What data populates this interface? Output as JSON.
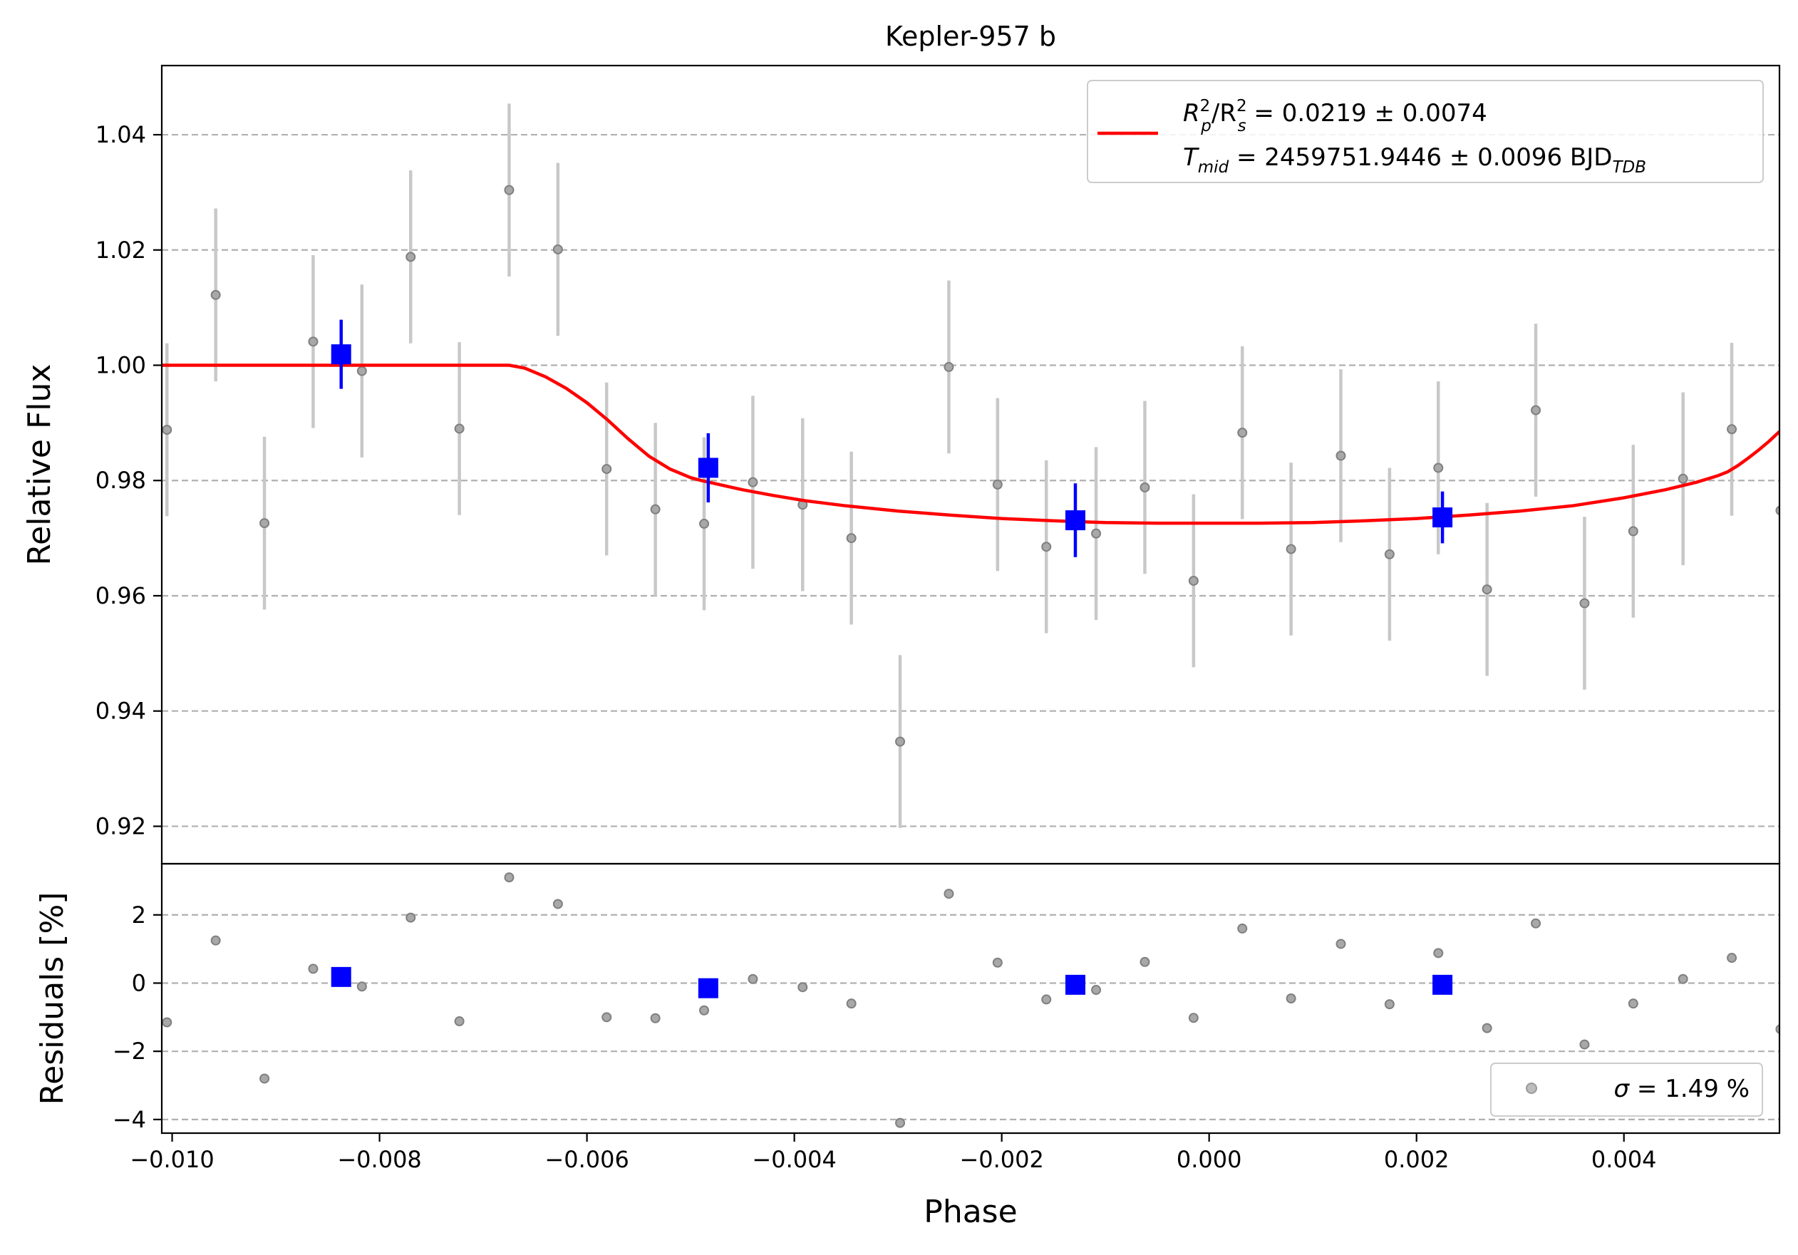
{
  "chart_data": {
    "type": "scatter",
    "title": "Kepler-957 b",
    "xlabel": "Phase",
    "xlim": [
      -0.0101,
      0.0055
    ],
    "x_ticks": [
      -0.01,
      -0.008,
      -0.006,
      -0.004,
      -0.002,
      0.0,
      0.002,
      0.004
    ],
    "x_tick_labels": [
      "−0.010",
      "−0.008",
      "−0.006",
      "−0.004",
      "−0.002",
      "0.000",
      "0.002",
      "0.004"
    ],
    "top_panel": {
      "ylabel": "Relative Flux",
      "ylim": [
        0.9135,
        1.052
      ],
      "y_ticks": [
        0.92,
        0.94,
        0.96,
        0.98,
        1.0,
        1.02,
        1.04
      ],
      "y_tick_labels": [
        "0.92",
        "0.94",
        "0.96",
        "0.98",
        "1.00",
        "1.02",
        "1.04"
      ],
      "grid": "horizontal dashed",
      "legend_position": "top-right",
      "legend": {
        "line1_a": "R",
        "line1_a_sup": "2",
        "line1_a_sub": "p",
        "line1_b": "/R",
        "line1_b_sup": "2",
        "line1_b_sub": "s",
        "line1_value": " = 0.0219 ± 0.0074",
        "line2_a": "T",
        "line2_a_sub": "mid",
        "line2_value": " = 2459751.9446 ± 0.0096 BJD",
        "line2_unit_sub": "TDB"
      },
      "data_points": [
        {
          "x": -0.01005,
          "y": 0.9888,
          "err": 0.015
        },
        {
          "x": -0.00958,
          "y": 1.0122,
          "err": 0.015
        },
        {
          "x": -0.00911,
          "y": 0.9726,
          "err": 0.015
        },
        {
          "x": -0.00864,
          "y": 1.0041,
          "err": 0.015
        },
        {
          "x": -0.00817,
          "y": 0.999,
          "err": 0.015
        },
        {
          "x": -0.0077,
          "y": 1.0188,
          "err": 0.015
        },
        {
          "x": -0.00723,
          "y": 0.989,
          "err": 0.015
        },
        {
          "x": -0.00675,
          "y": 1.0304,
          "err": 0.015
        },
        {
          "x": -0.00628,
          "y": 1.0201,
          "err": 0.015
        },
        {
          "x": -0.00581,
          "y": 0.982,
          "err": 0.015
        },
        {
          "x": -0.00534,
          "y": 0.975,
          "err": 0.015
        },
        {
          "x": -0.00487,
          "y": 0.9725,
          "err": 0.015
        },
        {
          "x": -0.0044,
          "y": 0.9797,
          "err": 0.015
        },
        {
          "x": -0.00392,
          "y": 0.9758,
          "err": 0.015
        },
        {
          "x": -0.00345,
          "y": 0.97,
          "err": 0.015
        },
        {
          "x": -0.00298,
          "y": 0.9347,
          "err": 0.015
        },
        {
          "x": -0.00251,
          "y": 0.9997,
          "err": 0.015
        },
        {
          "x": -0.00204,
          "y": 0.9793,
          "err": 0.015
        },
        {
          "x": -0.00157,
          "y": 0.9685,
          "err": 0.015
        },
        {
          "x": -0.00109,
          "y": 0.9708,
          "err": 0.015
        },
        {
          "x": -0.00062,
          "y": 0.9788,
          "err": 0.015
        },
        {
          "x": -0.00015,
          "y": 0.9626,
          "err": 0.015
        },
        {
          "x": 0.00032,
          "y": 0.9883,
          "err": 0.015
        },
        {
          "x": 0.00079,
          "y": 0.9681,
          "err": 0.015
        },
        {
          "x": 0.00127,
          "y": 0.9843,
          "err": 0.015
        },
        {
          "x": 0.00174,
          "y": 0.9672,
          "err": 0.015
        },
        {
          "x": 0.00221,
          "y": 0.9822,
          "err": 0.015
        },
        {
          "x": 0.00268,
          "y": 0.9611,
          "err": 0.015
        },
        {
          "x": 0.00315,
          "y": 0.9922,
          "err": 0.015
        },
        {
          "x": 0.00362,
          "y": 0.9587,
          "err": 0.015
        },
        {
          "x": 0.00409,
          "y": 0.9712,
          "err": 0.015
        },
        {
          "x": 0.00457,
          "y": 0.9803,
          "err": 0.015
        },
        {
          "x": 0.00504,
          "y": 0.9889,
          "err": 0.015
        },
        {
          "x": 0.00551,
          "y": 0.9748,
          "err": 0.015
        }
      ],
      "binned_points": [
        {
          "x": -0.00837,
          "y": 1.0019,
          "err": 0.006
        },
        {
          "x": -0.00483,
          "y": 0.9822,
          "err": 0.006
        },
        {
          "x": -0.00129,
          "y": 0.9731,
          "err": 0.0064
        },
        {
          "x": 0.00225,
          "y": 0.9736,
          "err": 0.0045
        }
      ],
      "model_curve": {
        "x": [
          -0.0101,
          -0.00675,
          -0.0066,
          -0.0064,
          -0.0062,
          -0.006,
          -0.0058,
          -0.0056,
          -0.0054,
          -0.0052,
          -0.005,
          -0.0049,
          -0.0047,
          -0.0045,
          -0.0042,
          -0.0039,
          -0.0035,
          -0.003,
          -0.0025,
          -0.002,
          -0.0015,
          -0.001,
          -0.0005,
          0.0,
          0.0005,
          0.001,
          0.0015,
          0.002,
          0.0025,
          0.003,
          0.0035,
          0.004,
          0.0044,
          0.0047,
          0.0049,
          0.005,
          0.0051,
          0.0052,
          0.0053,
          0.0054,
          0.0055
        ],
        "y": [
          1.0,
          1.0,
          0.9995,
          0.998,
          0.996,
          0.9935,
          0.9905,
          0.9872,
          0.9842,
          0.982,
          0.9805,
          0.98,
          0.9792,
          0.9784,
          0.9774,
          0.9765,
          0.9756,
          0.9747,
          0.974,
          0.9734,
          0.973,
          0.9727,
          0.9726,
          0.9726,
          0.9726,
          0.9727,
          0.973,
          0.9734,
          0.974,
          0.9747,
          0.9756,
          0.977,
          0.9784,
          0.9797,
          0.9808,
          0.9815,
          0.9826,
          0.9839,
          0.9853,
          0.9868,
          0.9885
        ]
      }
    },
    "bottom_panel": {
      "ylabel": "Residuals [%]",
      "ylim": [
        -4.4,
        3.5
      ],
      "y_ticks": [
        -4,
        -2,
        0,
        2
      ],
      "y_tick_labels": [
        "−4",
        "−2",
        "0",
        "2"
      ],
      "grid": "horizontal dashed",
      "legend_position": "bottom-right",
      "legend": {
        "sigma_symbol": "σ",
        "sigma_value": " = 1.49 %"
      },
      "residuals": [
        {
          "x": -0.01005,
          "y": -1.15
        },
        {
          "x": -0.00958,
          "y": 1.25
        },
        {
          "x": -0.00911,
          "y": -2.8
        },
        {
          "x": -0.00864,
          "y": 0.42
        },
        {
          "x": -0.00817,
          "y": -0.1
        },
        {
          "x": -0.0077,
          "y": 1.92
        },
        {
          "x": -0.00723,
          "y": -1.12
        },
        {
          "x": -0.00675,
          "y": 3.1
        },
        {
          "x": -0.00628,
          "y": 2.32
        },
        {
          "x": -0.00581,
          "y": -1.0
        },
        {
          "x": -0.00534,
          "y": -1.03
        },
        {
          "x": -0.00487,
          "y": -0.8
        },
        {
          "x": -0.0044,
          "y": 0.12
        },
        {
          "x": -0.00392,
          "y": -0.12
        },
        {
          "x": -0.00345,
          "y": -0.6
        },
        {
          "x": -0.00298,
          "y": -4.1
        },
        {
          "x": -0.00251,
          "y": 2.62
        },
        {
          "x": -0.00204,
          "y": 0.6
        },
        {
          "x": -0.00157,
          "y": -0.48
        },
        {
          "x": -0.00109,
          "y": -0.2
        },
        {
          "x": -0.00062,
          "y": 0.62
        },
        {
          "x": -0.00015,
          "y": -1.02
        },
        {
          "x": 0.00032,
          "y": 1.6
        },
        {
          "x": 0.00079,
          "y": -0.45
        },
        {
          "x": 0.00127,
          "y": 1.15
        },
        {
          "x": 0.00174,
          "y": -0.62
        },
        {
          "x": 0.00221,
          "y": 0.88
        },
        {
          "x": 0.00268,
          "y": -1.32
        },
        {
          "x": 0.00315,
          "y": 1.75
        },
        {
          "x": 0.00362,
          "y": -1.8
        },
        {
          "x": 0.00409,
          "y": -0.6
        },
        {
          "x": 0.00457,
          "y": 0.12
        },
        {
          "x": 0.00504,
          "y": 0.74
        },
        {
          "x": 0.00551,
          "y": -1.35
        }
      ],
      "binned_residuals": [
        {
          "x": -0.00837,
          "y": 0.18
        },
        {
          "x": -0.00483,
          "y": -0.15
        },
        {
          "x": -0.00129,
          "y": -0.05
        },
        {
          "x": 0.00225,
          "y": -0.05
        }
      ]
    },
    "colors": {
      "data": "#808080",
      "errorbar": "#c8c8c8",
      "binned": "#0000ff",
      "model": "#ff0000",
      "grid": "#b0b0b0"
    }
  }
}
